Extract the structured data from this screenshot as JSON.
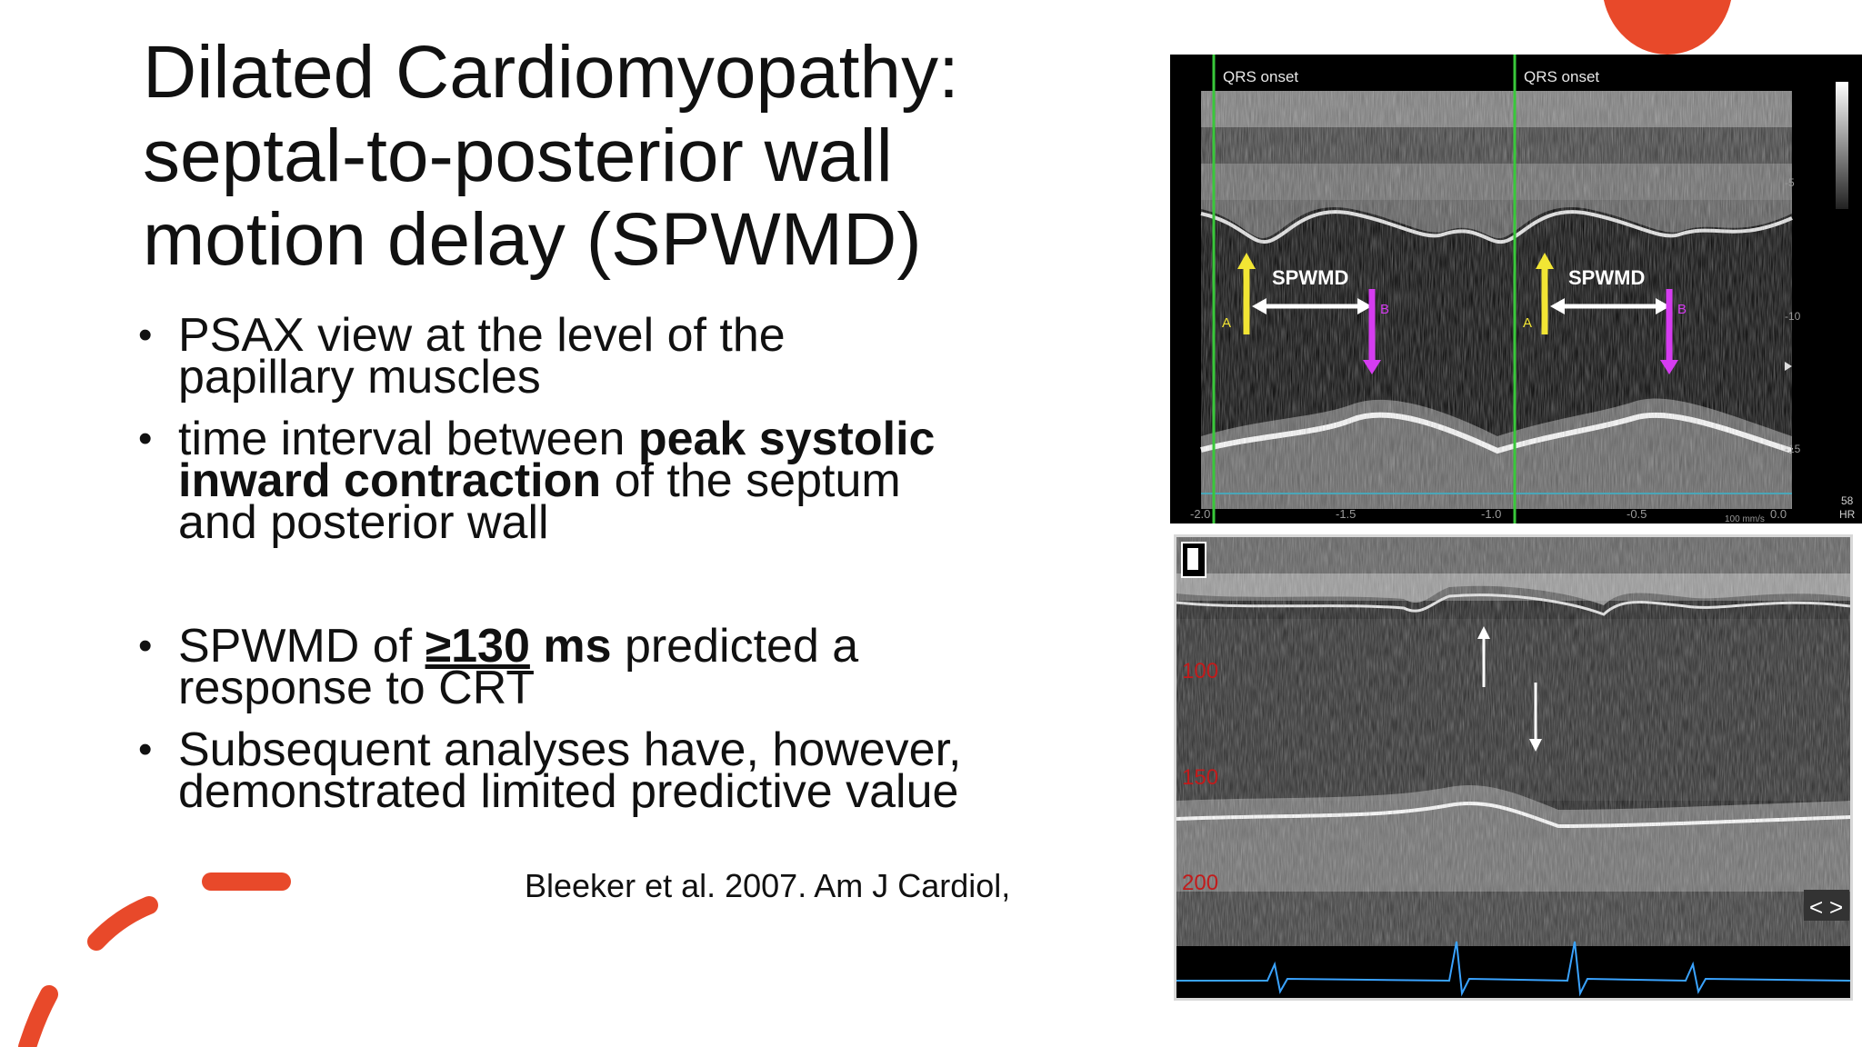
{
  "slide": {
    "title_lines": [
      "Dilated Cardiomyopathy:",
      "septal-to-posterior wall",
      "motion delay (SPWMD)"
    ],
    "bullets": {
      "b1_l1": "PSAX view at the level of the",
      "b1_l2": "papillary muscles",
      "b2_l1a": "time interval between ",
      "b2_l1b": "peak systolic",
      "b2_l2a": "inward contraction",
      "b2_l2b": " of the septum",
      "b2_l3": "and posterior wall",
      "b3_l1a": "SPWMD of ",
      "b3_l1b": "≥130",
      "b3_l1c": " ms",
      "b3_l1d": " predicted a",
      "b3_l2": "response to CRT",
      "b4_l1": "Subsequent analyses have, however,",
      "b4_l2": "demonstrated limited predictive value"
    },
    "reference": "Bleeker et al. 2007. Am J Cardiol,"
  },
  "mmode_top": {
    "qrs_label": "QRS onset",
    "spwmd_label": "SPWMD",
    "label_a": "A",
    "label_b": "B",
    "x_ticks": [
      "-2.0",
      "-1.5",
      "-1.0",
      "-0.5",
      "0.0"
    ],
    "depth_ticks": [
      "-5",
      "-10",
      "-15"
    ],
    "speed": "100 mm/s",
    "hr_value": "58",
    "hr_label": "HR",
    "colors": {
      "qrs_line": "#39c83a",
      "arrow_a": "#f2e534",
      "arrow_b": "#d53cf0",
      "spwmd_arrow": "#ffffff"
    }
  },
  "mmode_bottom": {
    "depth_ticks": [
      "100",
      "150",
      "200"
    ],
    "nav_prev": "<",
    "nav_next": ">",
    "colors": {
      "ecg": "#3aa3ff",
      "depth": "#c21b1b",
      "arrows": "#ffffff"
    }
  },
  "decor": {
    "accent": "#e8492a"
  }
}
